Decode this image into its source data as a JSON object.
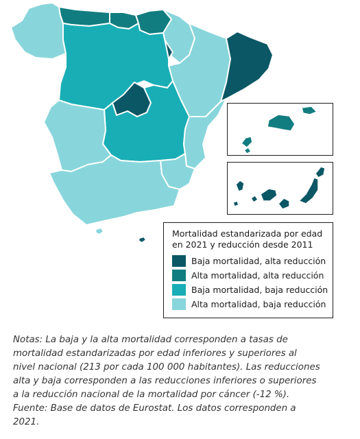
{
  "colors": {
    "low_mortality_high_reduction": "#0b5766",
    "high_mortality_high_reduction": "#127d80",
    "low_mortality_low_reduction": "#19aeb6",
    "high_mortality_low_reduction": "#88d6dc",
    "border": "#ffffff"
  },
  "regions": [
    {
      "name": "Galicia",
      "category": "high_mortality_low_reduction"
    },
    {
      "name": "Asturias",
      "category": "high_mortality_high_reduction"
    },
    {
      "name": "Cantabria",
      "category": "high_mortality_high_reduction"
    },
    {
      "name": "País Vasco",
      "category": "high_mortality_high_reduction"
    },
    {
      "name": "Navarra",
      "category": "high_mortality_low_reduction"
    },
    {
      "name": "La Rioja",
      "category": "low_mortality_high_reduction"
    },
    {
      "name": "Aragón",
      "category": "high_mortality_low_reduction"
    },
    {
      "name": "Cataluña",
      "category": "low_mortality_high_reduction"
    },
    {
      "name": "Castilla y León",
      "category": "low_mortality_low_reduction"
    },
    {
      "name": "Madrid",
      "category": "low_mortality_high_reduction"
    },
    {
      "name": "Castilla-La Mancha",
      "category": "low_mortality_low_reduction"
    },
    {
      "name": "Extremadura",
      "category": "high_mortality_low_reduction"
    },
    {
      "name": "Comunidad Valenciana",
      "category": "high_mortality_low_reduction"
    },
    {
      "name": "Murcia",
      "category": "high_mortality_low_reduction"
    },
    {
      "name": "Andalucía",
      "category": "high_mortality_low_reduction"
    },
    {
      "name": "Islas Baleares",
      "category": "high_mortality_high_reduction"
    },
    {
      "name": "Canarias",
      "category": "low_mortality_high_reduction"
    },
    {
      "name": "Ceuta",
      "category": "high_mortality_low_reduction"
    },
    {
      "name": "Melilla",
      "category": "low_mortality_high_reduction"
    }
  ],
  "legend": {
    "title_line1": "Mortalidad estandarizada por edad",
    "title_line2": "en 2021 y reducción desde 2011",
    "items": [
      {
        "label": "Baja mortalidad, alta reducción",
        "color": "#0b5766"
      },
      {
        "label": "Alta mortalidad, alta reducción",
        "color": "#127d80"
      },
      {
        "label": "Baja mortalidad, baja reducción",
        "color": "#19aeb6"
      },
      {
        "label": "Alta mortalidad, baja reducción",
        "color": "#88d6dc"
      }
    ]
  },
  "notes": {
    "line1": "Notas: La baja y la alta mortalidad corresponden a tasas de",
    "line2": "mortalidad estandarizadas por edad inferiores y superiores al",
    "line3": "nivel nacional (213 por cada 100 000 habitantes). Las reducciones",
    "line4": "alta y baja corresponden a las reducciones inferiores o superiores",
    "line5": "a la reducción nacional de la mortalidad por cáncer (-12 %).",
    "line6": "Fuente: Base de datos de Eurostat. Los datos corresponden a",
    "line7": "2021."
  }
}
